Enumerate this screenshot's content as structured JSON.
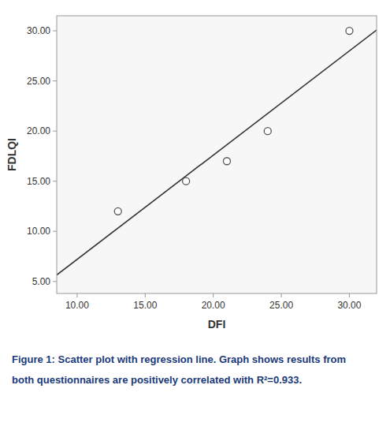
{
  "chart_data": {
    "type": "scatter",
    "xlabel": "DFI",
    "ylabel": "FDLQI",
    "annotations": [
      "Figure 1: Scatter plot with regression line. Graph shows results from",
      "both questionnaires are positively correlated with R²=0.933."
    ],
    "series": [
      {
        "type": "scatter",
        "color": "#555555",
        "marker": "circle",
        "x": [
          13,
          18,
          21,
          24,
          30
        ],
        "values": [
          12,
          15,
          17,
          20,
          30
        ]
      },
      {
        "type": "line",
        "color": "#333333",
        "line_style": "solid",
        "x": [
          8.5,
          32
        ],
        "values": [
          5.64,
          30.08
        ]
      }
    ],
    "xlim": [
      8.5,
      32
    ],
    "ylim": [
      3.8,
      31.5
    ],
    "xticks": [
      {
        "value": 10.0,
        "label": "10.00"
      },
      {
        "value": 15.0,
        "label": "15.00"
      },
      {
        "value": 20.0,
        "label": "20.00"
      },
      {
        "value": 25.0,
        "label": "25.00"
      },
      {
        "value": 30.0,
        "label": "30.00"
      }
    ],
    "yticks": [
      {
        "value": 5.0,
        "label": "5.00"
      },
      {
        "value": 10.0,
        "label": "10.00"
      },
      {
        "value": 15.0,
        "label": "15.00"
      },
      {
        "value": 20.0,
        "label": "20.00"
      },
      {
        "value": 25.0,
        "label": "25.00"
      },
      {
        "value": 30.0,
        "label": "30.00"
      }
    ],
    "grid": false
  }
}
